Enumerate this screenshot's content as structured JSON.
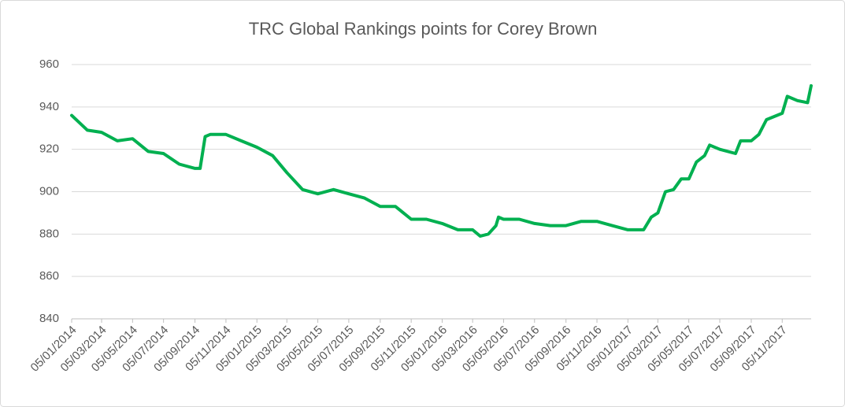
{
  "chart_data": {
    "type": "line",
    "title": "TRC Global Rankings points for Corey Brown",
    "color": "#00b050",
    "x": [
      "05/01/2014",
      "05/02/2014",
      "05/03/2014",
      "05/04/2014",
      "05/05/2014",
      "05/06/2014",
      "05/07/2014",
      "05/08/2014",
      "05/09/2014",
      "15/09/2014",
      "25/09/2014",
      "05/10/2014",
      "05/11/2014",
      "05/12/2014",
      "05/01/2015",
      "05/02/2015",
      "05/03/2015",
      "05/04/2015",
      "05/05/2015",
      "05/06/2015",
      "05/07/2015",
      "05/08/2015",
      "05/09/2015",
      "05/10/2015",
      "05/11/2015",
      "05/12/2015",
      "05/01/2016",
      "05/02/2016",
      "05/03/2016",
      "20/03/2016",
      "05/04/2016",
      "20/04/2016",
      "25/04/2016",
      "05/05/2016",
      "05/06/2016",
      "05/07/2016",
      "05/08/2016",
      "05/09/2016",
      "05/10/2016",
      "05/11/2016",
      "05/12/2016",
      "05/01/2017",
      "05/02/2017",
      "20/02/2017",
      "05/03/2017",
      "20/03/2017",
      "05/04/2017",
      "20/04/2017",
      "05/05/2017",
      "20/05/2017",
      "05/06/2017",
      "15/06/2017",
      "05/07/2017",
      "05/08/2017",
      "15/08/2017",
      "05/09/2017",
      "20/09/2017",
      "05/10/2017",
      "05/11/2017",
      "15/11/2017",
      "05/12/2017",
      "25/12/2017",
      "01/01/2018"
    ],
    "values": [
      936,
      929,
      928,
      924,
      925,
      919,
      918,
      913,
      911,
      911,
      926,
      927,
      927,
      924,
      921,
      917,
      909,
      901,
      899,
      901,
      899,
      897,
      893,
      893,
      887,
      887,
      885,
      882,
      882,
      879,
      880,
      884,
      888,
      887,
      887,
      885,
      884,
      884,
      886,
      886,
      884,
      882,
      882,
      888,
      890,
      900,
      901,
      906,
      906,
      914,
      917,
      922,
      920,
      918,
      924,
      924,
      927,
      934,
      937,
      945,
      943,
      942,
      950
    ],
    "xlim": [
      "05/01/2014",
      "01/01/2018"
    ],
    "xticks": [
      "05/01/2014",
      "05/03/2014",
      "05/05/2014",
      "05/07/2014",
      "05/09/2014",
      "05/11/2014",
      "05/01/2015",
      "05/03/2015",
      "05/05/2015",
      "05/07/2015",
      "05/09/2015",
      "05/11/2015",
      "05/01/2016",
      "05/03/2016",
      "05/05/2016",
      "05/07/2016",
      "05/09/2016",
      "05/11/2016",
      "05/01/2017",
      "05/03/2017",
      "05/05/2017",
      "05/07/2017",
      "05/09/2017",
      "05/11/2017"
    ],
    "ylim": [
      840,
      960
    ],
    "yticks": [
      840,
      860,
      880,
      900,
      920,
      940,
      960
    ],
    "grid": true
  }
}
